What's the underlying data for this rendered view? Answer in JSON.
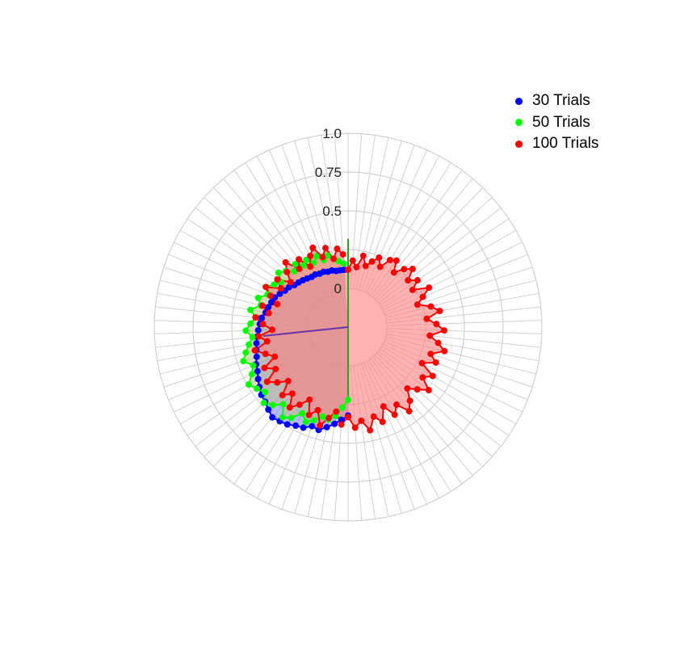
{
  "chart_data": {
    "type": "radar",
    "title": "",
    "radial_ticks": [
      "0",
      "0.5",
      "0.75",
      "1.0"
    ],
    "radial_range": [
      0,
      1
    ],
    "spokes": 90,
    "grid": true,
    "legend_position": "top-right",
    "series": [
      {
        "name": "30 Trials",
        "color": "#0000ff",
        "fill": "#7f7fff",
        "start_spoke": 45,
        "end_spoke": 89,
        "values": [
          0.32,
          0.35,
          0.38,
          0.41,
          0.44,
          0.43,
          0.46,
          0.47,
          0.49,
          0.5,
          0.51,
          0.49,
          0.47,
          0.46,
          0.44,
          0.42,
          0.4,
          0.39,
          0.37,
          0.36,
          0.35,
          0.34,
          0.33,
          0.32,
          0.31,
          0.29,
          0.28,
          0.27,
          0.26,
          0.24,
          0.22,
          0.21,
          0.19,
          0.18,
          0.17,
          0.16,
          0.15,
          0.15,
          0.14,
          0.14,
          0.13,
          0.13,
          0.12,
          0.12,
          0.12
        ]
      },
      {
        "name": "50 Trials",
        "color": "#00ff00",
        "fill": "#bfbf7f",
        "start_spoke": 45,
        "end_spoke": 89,
        "values": [
          0.22,
          0.27,
          0.33,
          0.36,
          0.35,
          0.39,
          0.42,
          0.38,
          0.44,
          0.47,
          0.4,
          0.45,
          0.48,
          0.43,
          0.46,
          0.49,
          0.44,
          0.41,
          0.46,
          0.43,
          0.4,
          0.37,
          0.41,
          0.38,
          0.35,
          0.39,
          0.33,
          0.36,
          0.31,
          0.34,
          0.3,
          0.27,
          0.32,
          0.29,
          0.25,
          0.28,
          0.24,
          0.26,
          0.22,
          0.25,
          0.21,
          0.23,
          0.2,
          0.18,
          0.16
        ]
      },
      {
        "name": "100 Trials",
        "color": "#ff0000",
        "fill": "#ff7f7f",
        "start_spoke": 0,
        "end_spoke": 89,
        "values": [
          0.12,
          0.18,
          0.14,
          0.22,
          0.16,
          0.2,
          0.24,
          0.19,
          0.26,
          0.28,
          0.21,
          0.27,
          0.31,
          0.24,
          0.29,
          0.23,
          0.33,
          0.27,
          0.22,
          0.3,
          0.35,
          0.26,
          0.32,
          0.37,
          0.28,
          0.34,
          0.39,
          0.31,
          0.36,
          0.28,
          0.38,
          0.33,
          0.41,
          0.35,
          0.3,
          0.37,
          0.42,
          0.34,
          0.39,
          0.31,
          0.4,
          0.35,
          0.43,
          0.36,
          0.4,
          0.33,
          0.38,
          0.3,
          0.35,
          0.41,
          0.32,
          0.37,
          0.28,
          0.34,
          0.39,
          0.31,
          0.36,
          0.27,
          0.33,
          0.38,
          0.29,
          0.35,
          0.26,
          0.31,
          0.37,
          0.28,
          0.33,
          0.24,
          0.3,
          0.35,
          0.27,
          0.32,
          0.23,
          0.29,
          0.34,
          0.25,
          0.3,
          0.22,
          0.28,
          0.33,
          0.24,
          0.29,
          0.21,
          0.27,
          0.31,
          0.23,
          0.28,
          0.2,
          0.26,
          0.22
        ]
      }
    ]
  },
  "legend": {
    "items": [
      {
        "label": "30 Trials",
        "color": "#0000ff"
      },
      {
        "label": "50 Trials",
        "color": "#00ff00"
      },
      {
        "label": "100 Trials",
        "color": "#ff0000"
      }
    ]
  }
}
